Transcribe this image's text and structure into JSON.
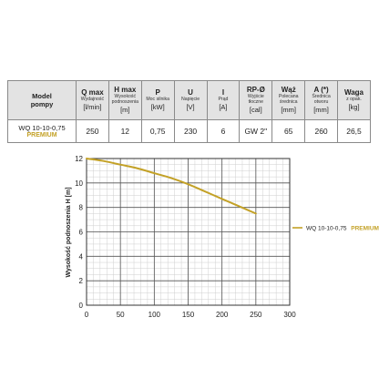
{
  "table": {
    "headers": [
      {
        "big": "Model",
        "big2": "pompy"
      },
      {
        "big": "Q max",
        "sub": "Wydajność",
        "unit": "[l/min]"
      },
      {
        "big": "H max",
        "sub": "Wysokość podnoszenia",
        "unit": "[m]"
      },
      {
        "big": "P",
        "sub": "Moc silnika",
        "unit": "[kW]"
      },
      {
        "big": "U",
        "sub": "Napięcie",
        "unit": "[V]"
      },
      {
        "big": "I",
        "sub": "Prąd",
        "unit": "[A]"
      },
      {
        "big": "RP-Ø",
        "sub": "Wyjście tłoczne",
        "unit": "[cal]"
      },
      {
        "big": "Wąż",
        "sub": "Polecana średnica",
        "unit": "[mm]"
      },
      {
        "big": "A (*)",
        "sub": "Średnica otworu",
        "unit": "[mm]"
      },
      {
        "big": "Waga",
        "sub": "z opak.",
        "unit": "[kg]"
      }
    ],
    "row": {
      "model_name": "WQ 10-10-0,75",
      "model_tag": "PREMIUM",
      "values": [
        "250",
        "12",
        "0,75",
        "230",
        "6",
        "GW 2\"",
        "65",
        "260",
        "26,5"
      ]
    }
  },
  "chart_data": {
    "type": "line",
    "ylabel": "Wysokość podnoszenia H [m]",
    "xlabel": "",
    "xlim": [
      0,
      300
    ],
    "ylim": [
      0,
      12
    ],
    "xticks": [
      "0",
      "50",
      "100",
      "150",
      "200",
      "250",
      "300"
    ],
    "yticks": [
      "0",
      "2",
      "4",
      "6",
      "8",
      "10",
      "12"
    ],
    "grid": true,
    "legend_position": "right",
    "series": [
      {
        "name": "WQ 10-10-0,75",
        "name_tag": "PREMIUM",
        "color": "#c3a126",
        "x": [
          0,
          25,
          50,
          75,
          100,
          125,
          150,
          175,
          200,
          225,
          250
        ],
        "y": [
          12.0,
          11.8,
          11.5,
          11.2,
          10.8,
          10.4,
          9.9,
          9.3,
          8.7,
          8.1,
          7.5
        ]
      }
    ]
  }
}
